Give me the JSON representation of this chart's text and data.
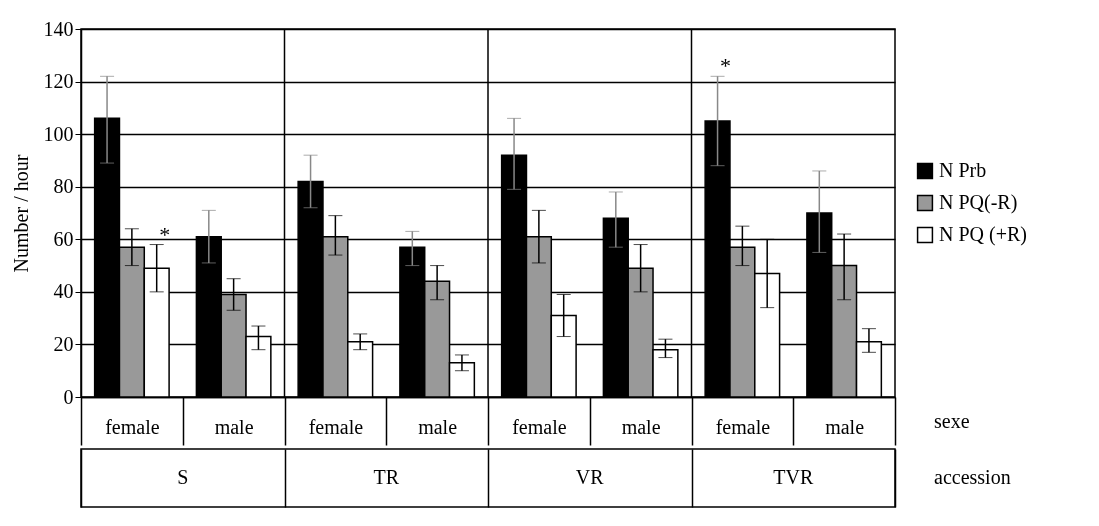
{
  "chart_data": {
    "type": "bar",
    "ylabel": "Number / hour",
    "categories": [
      "female",
      "male",
      "female",
      "male",
      "female",
      "male",
      "female",
      "male"
    ],
    "ylim": [
      0,
      140
    ],
    "yticks": [
      0,
      20,
      40,
      60,
      80,
      100,
      120,
      140
    ],
    "grid": "y",
    "legend": "right",
    "annotations": [
      "S",
      "TR",
      "VR",
      "TVR",
      "sexe",
      "accession"
    ],
    "series": [
      {
        "name": "N Prb",
        "color": "#000000",
        "values": [
          106,
          61,
          82,
          57,
          92,
          68,
          105,
          70
        ],
        "errors": [
          [
            89,
            122
          ],
          [
            51,
            71
          ],
          [
            72,
            92
          ],
          [
            50,
            63
          ],
          [
            79,
            106
          ],
          [
            57,
            78
          ],
          [
            88,
            122
          ],
          [
            55,
            86
          ]
        ],
        "value_labels": [
          null,
          null,
          null,
          null,
          null,
          null,
          "*",
          null
        ]
      },
      {
        "name": "N PQ(-R)",
        "color": "#999999",
        "values": [
          57,
          39,
          61,
          44,
          61,
          49,
          57,
          50
        ],
        "errors": [
          [
            50,
            64
          ],
          [
            33,
            45
          ],
          [
            54,
            69
          ],
          [
            37,
            50
          ],
          [
            51,
            71
          ],
          [
            40,
            58
          ],
          [
            50,
            65
          ],
          [
            37,
            62
          ]
        ]
      },
      {
        "name": "N PQ (+R)",
        "color": "#ffffff",
        "values": [
          49,
          23,
          21,
          13,
          31,
          18,
          47,
          21
        ],
        "errors": [
          [
            40,
            58
          ],
          [
            18,
            27
          ],
          [
            18,
            24
          ],
          [
            10,
            16
          ],
          [
            23,
            39
          ],
          [
            15,
            22
          ],
          [
            34,
            60
          ],
          [
            17,
            26
          ]
        ],
        "value_labels": [
          "*",
          null,
          null,
          null,
          null,
          null,
          null,
          null
        ]
      }
    ]
  }
}
